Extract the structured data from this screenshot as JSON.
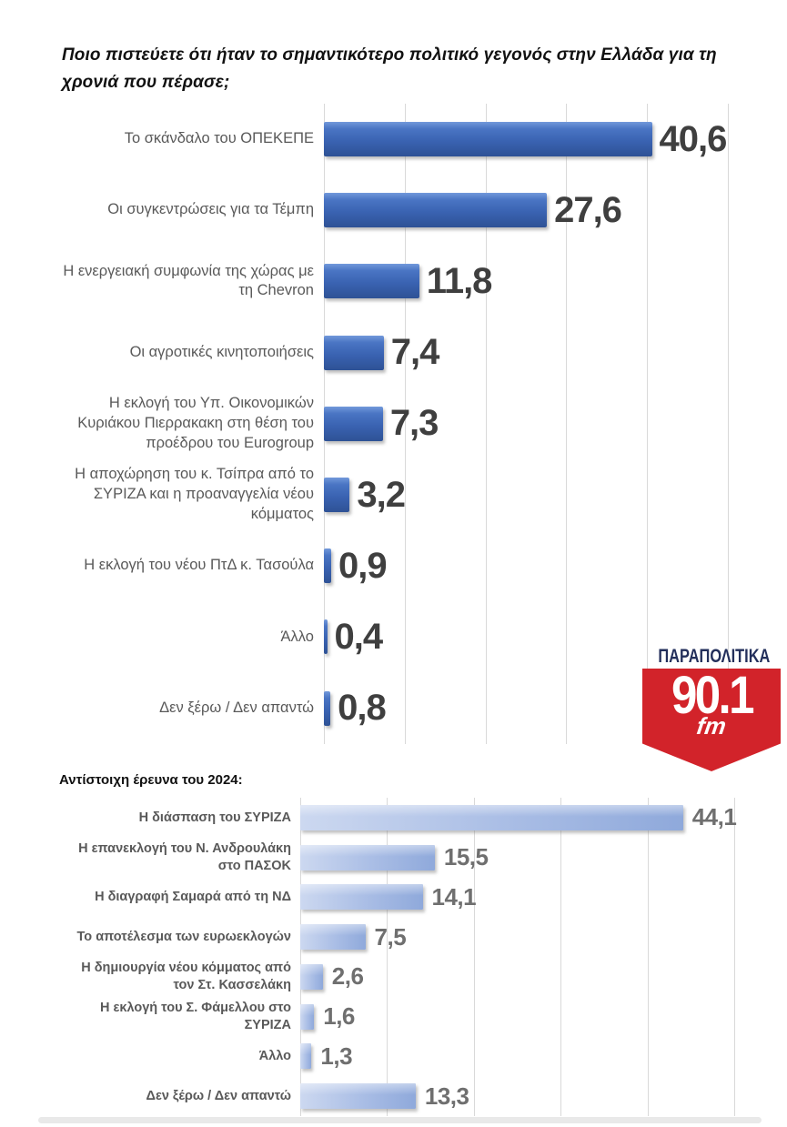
{
  "title": "Ποιο πιστεύετε ότι ήταν το σημαντικότερο πολιτικό γεγονός στην Ελλάδα για τη χρονιά που πέρασε;",
  "section2_header": "Αντίστοιχη έρευνα του 2024:",
  "logo": {
    "name": "ΠΑΡΑΠΟΛΙΤΙΚΑ",
    "frequency": "90.1",
    "band": "fm",
    "shield_color": "#d2232a",
    "name_color": "#232f5b"
  },
  "colors": {
    "chart1_bar": "#3a63b2",
    "chart2_bar": "#a9bde5",
    "gridline": "#d9d9d9",
    "category_label": "#595959",
    "value_label_chart1": "#3f3f3f",
    "value_label_chart2": "#6f6f6f"
  },
  "chart_data": [
    {
      "type": "bar",
      "orientation": "horizontal",
      "title": "Ποιο πιστεύετε ότι ήταν το σημαντικότερο πολιτικό γεγονός στην Ελλάδα για τη χρονιά που πέρασε;",
      "categories": [
        "Το σκάνδαλο του ΟΠΕΚΕΠΕ",
        "Οι συγκεντρώσεις για τα Τέμπη",
        "Η ενεργειακή συμφωνία της χώρας με τη Chevron",
        "Οι αγροτικές κινητοποιήσεις",
        "Η εκλογή του Υπ. Οικονομικών Κυριάκου Πιερρακακη στη θέση του προέδρου του Eurogroup",
        "Η αποχώρηση του κ. Τσίπρα από το ΣΥΡΙΖΑ και η προαναγγελία νέου κόμματος",
        "Η εκλογή του νέου ΠτΔ κ. Τασούλα",
        "Άλλο",
        "Δεν ξέρω / Δεν απαντώ"
      ],
      "values": [
        40.6,
        27.6,
        11.8,
        7.4,
        7.3,
        3.2,
        0.9,
        0.4,
        0.8
      ],
      "value_labels": [
        "40,6",
        "27,6",
        "11,8",
        "7,4",
        "7,3",
        "3,2",
        "0,9",
        "0,4",
        "0,8"
      ],
      "xlim": [
        0,
        50
      ],
      "gridline_step": 10,
      "grid": true,
      "legend": false
    },
    {
      "type": "bar",
      "orientation": "horizontal",
      "title": "Αντίστοιχη έρευνα του 2024:",
      "categories": [
        "Η διάσπαση του ΣΥΡΙΖΑ",
        "Η επανεκλογή του Ν. Ανδρουλάκη στο ΠΑΣΟΚ",
        "Η διαγραφή Σαμαρά από τη ΝΔ",
        "Το αποτέλεσμα των ευρωεκλογών",
        "Η δημιουργία νέου κόμματος από τον Στ. Κασσελάκη",
        "Η εκλογή του Σ. Φάμελλου στο ΣΥΡΙΖΑ",
        "Άλλο",
        "Δεν ξέρω / Δεν απαντώ"
      ],
      "values": [
        44.1,
        15.5,
        14.1,
        7.5,
        2.6,
        1.6,
        1.3,
        13.3
      ],
      "value_labels": [
        "44,1",
        "15,5",
        "14,1",
        "7,5",
        "2,6",
        "1,6",
        "1,3",
        "13,3"
      ],
      "xlim": [
        0,
        50
      ],
      "gridline_step": 10,
      "grid": true,
      "legend": false
    }
  ]
}
